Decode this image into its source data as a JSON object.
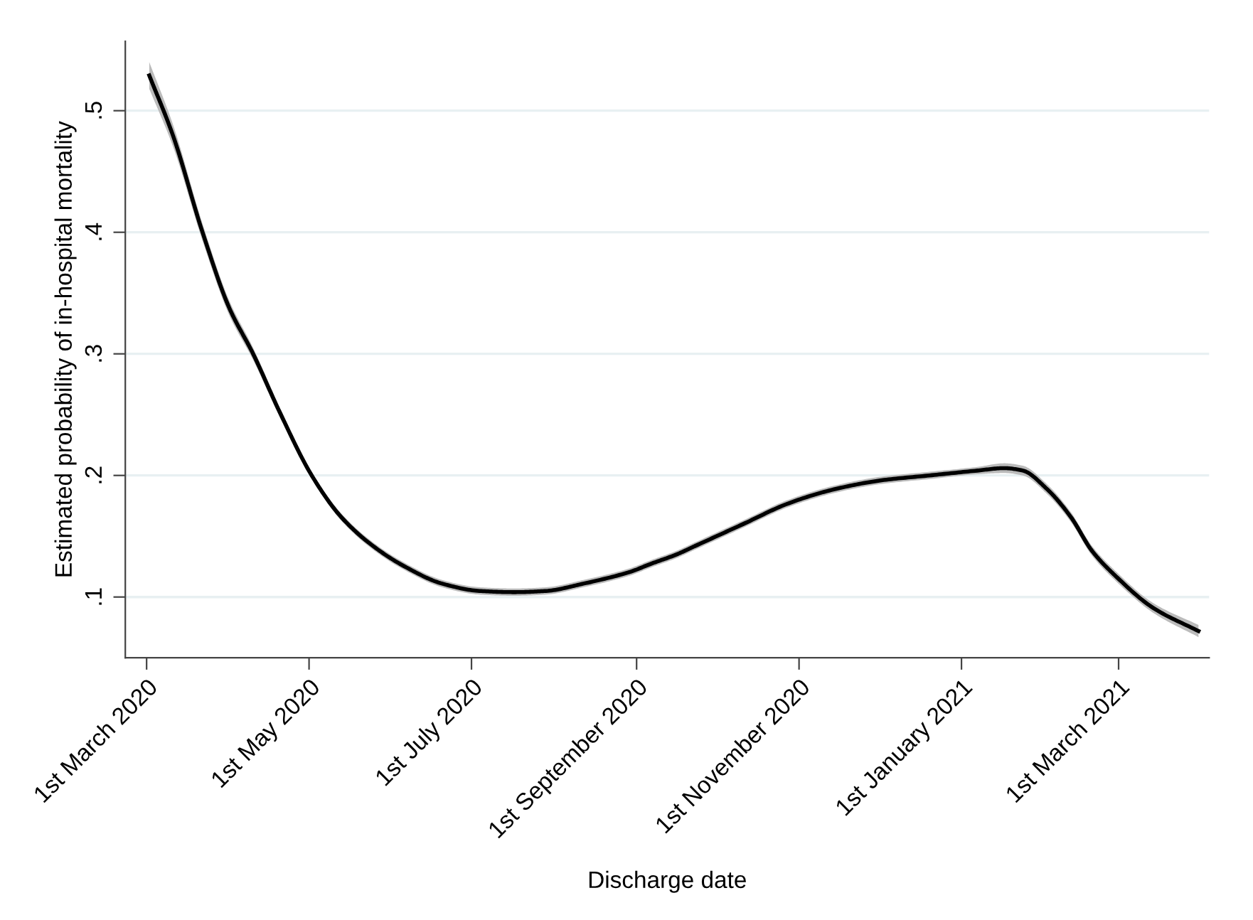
{
  "chart_data": {
    "type": "line",
    "xlabel": "Discharge date",
    "ylabel": "Estimated probability of in-hospital mortality",
    "xlim": [
      "2020-02-22",
      "2021-04-04"
    ],
    "ylim": [
      0.05,
      0.557
    ],
    "xticks": [
      {
        "value": "2020-03-01",
        "label": "1st March 2020"
      },
      {
        "value": "2020-05-01",
        "label": "1st May 2020"
      },
      {
        "value": "2020-07-01",
        "label": "1st July 2020"
      },
      {
        "value": "2020-09-01",
        "label": "1st September 2020"
      },
      {
        "value": "2020-11-01",
        "label": "1st November 2020"
      },
      {
        "value": "2021-01-01",
        "label": "1st January 2021"
      },
      {
        "value": "2021-03-01",
        "label": "1st March 2021"
      }
    ],
    "yticks": [
      {
        "value": 0.1,
        "label": ".1"
      },
      {
        "value": 0.2,
        "label": ".2"
      },
      {
        "value": 0.3,
        "label": ".3"
      },
      {
        "value": 0.4,
        "label": ".4"
      },
      {
        "value": 0.5,
        "label": ".5"
      }
    ],
    "grid": "y",
    "marker": "none",
    "line_style": "solid",
    "x": [
      "2020-03-02",
      "2020-03-11",
      "2020-03-22",
      "2020-04-01",
      "2020-04-10",
      "2020-04-20",
      "2020-05-02",
      "2020-05-13",
      "2020-05-25",
      "2020-06-06",
      "2020-06-20",
      "2020-07-04",
      "2020-07-17",
      "2020-07-29",
      "2020-08-12",
      "2020-08-30",
      "2020-09-06",
      "2020-09-16",
      "2020-09-23",
      "2020-10-11",
      "2020-10-28",
      "2020-11-15",
      "2020-12-02",
      "2020-12-20",
      "2021-01-07",
      "2021-01-17",
      "2021-01-24",
      "2021-02-02",
      "2021-02-11",
      "2021-02-19",
      "2021-02-28",
      "2021-03-14",
      "2021-03-31"
    ],
    "series": [
      {
        "color": "#000000",
        "values": [
          0.529,
          0.479,
          0.4,
          0.338,
          0.3,
          0.252,
          0.2,
          0.166,
          0.142,
          0.125,
          0.111,
          0.105,
          0.104,
          0.105,
          0.111,
          0.121,
          0.127,
          0.135,
          0.142,
          0.16,
          0.177,
          0.189,
          0.196,
          0.2,
          0.204,
          0.206,
          0.204,
          0.189,
          0.166,
          0.138,
          0.117,
          0.091,
          0.072
        ],
        "lower": [
          0.518,
          0.47,
          0.393,
          0.332,
          0.295,
          0.248,
          0.197,
          0.163,
          0.139,
          0.122,
          0.108,
          0.102,
          0.101,
          0.102,
          0.108,
          0.118,
          0.124,
          0.132,
          0.139,
          0.157,
          0.174,
          0.186,
          0.193,
          0.197,
          0.201,
          0.202,
          0.2,
          0.185,
          0.162,
          0.134,
          0.113,
          0.087,
          0.067
        ],
        "upper": [
          0.54,
          0.488,
          0.407,
          0.344,
          0.305,
          0.256,
          0.203,
          0.169,
          0.145,
          0.128,
          0.114,
          0.108,
          0.107,
          0.108,
          0.114,
          0.124,
          0.13,
          0.138,
          0.145,
          0.163,
          0.18,
          0.192,
          0.199,
          0.203,
          0.207,
          0.21,
          0.208,
          0.193,
          0.17,
          0.142,
          0.121,
          0.095,
          0.077
        ]
      }
    ]
  }
}
